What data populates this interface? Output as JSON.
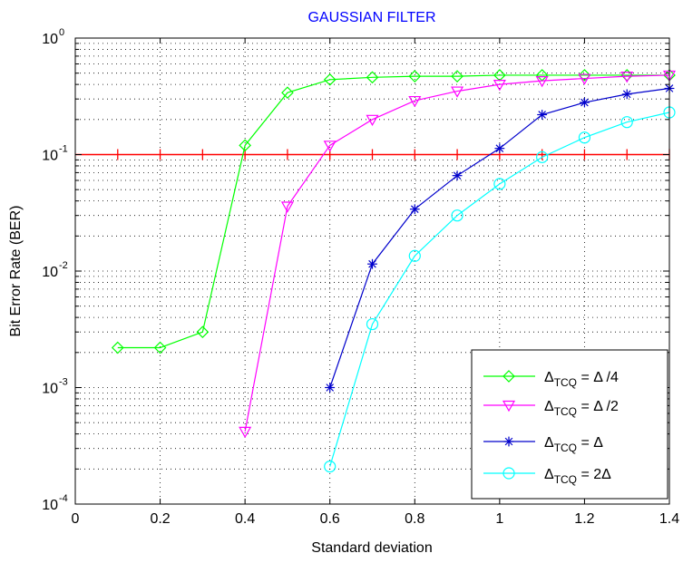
{
  "chart_data": {
    "type": "line",
    "title": "GAUSSIAN FILTER",
    "xlabel": "Standard deviation",
    "ylabel": "Bit Error Rate (BER)",
    "xlim": [
      0,
      1.4
    ],
    "ylim": [
      0.0001,
      1
    ],
    "yscale": "log",
    "grid": true,
    "legend_position": "bottom-right",
    "x_ticks": [
      "0",
      "0.2",
      "0.4",
      "0.6",
      "0.8",
      "1",
      "1.2",
      "1.4"
    ],
    "y_ticks": [
      {
        "base": "10",
        "exp": "-4"
      },
      {
        "base": "10",
        "exp": "-3"
      },
      {
        "base": "10",
        "exp": "-2"
      },
      {
        "base": "10",
        "exp": "-1"
      },
      {
        "base": "10",
        "exp": "0"
      }
    ],
    "threshold": {
      "y": 0.1,
      "color": "#ff0000",
      "x": [
        0.1,
        0.2,
        0.3,
        0.4,
        0.5,
        0.6,
        0.7,
        0.8,
        0.9,
        1.0,
        1.1,
        1.2,
        1.3,
        1.4
      ]
    },
    "series": [
      {
        "name": "Δ_TCQ = Δ/4",
        "legend_main": "Δ",
        "legend_sub": "TCQ",
        "legend_rest": " = Δ /4",
        "color": "#00ff00",
        "marker": "diamond",
        "x": [
          0.1,
          0.2,
          0.3,
          0.4,
          0.5,
          0.6,
          0.7,
          0.8,
          0.9,
          1.0,
          1.1,
          1.2,
          1.3,
          1.4
        ],
        "y": [
          0.0022,
          0.0022,
          0.003,
          0.12,
          0.34,
          0.44,
          0.46,
          0.47,
          0.47,
          0.48,
          0.48,
          0.48,
          0.48,
          0.48
        ]
      },
      {
        "name": "Δ_TCQ = Δ/2",
        "legend_main": "Δ",
        "legend_sub": "TCQ",
        "legend_rest": " = Δ /2",
        "color": "#ff00ff",
        "marker": "triangle-down",
        "x": [
          0.4,
          0.5,
          0.6,
          0.7,
          0.8,
          0.9,
          1.0,
          1.1,
          1.2,
          1.3,
          1.4
        ],
        "y": [
          0.00042,
          0.036,
          0.12,
          0.2,
          0.29,
          0.35,
          0.4,
          0.43,
          0.45,
          0.47,
          0.48
        ]
      },
      {
        "name": "Δ_TCQ = Δ",
        "legend_main": "Δ",
        "legend_sub": "TCQ",
        "legend_rest": " = Δ",
        "color": "#0000cc",
        "marker": "star",
        "x": [
          0.6,
          0.7,
          0.8,
          0.9,
          1.0,
          1.1,
          1.2,
          1.3,
          1.4
        ],
        "y": [
          0.001,
          0.0115,
          0.034,
          0.066,
          0.113,
          0.22,
          0.28,
          0.33,
          0.37
        ]
      },
      {
        "name": "Δ_TCQ = 2Δ",
        "legend_main": "Δ",
        "legend_sub": "TCQ",
        "legend_rest": " = 2Δ",
        "color": "#00ffff",
        "marker": "circle",
        "x": [
          0.6,
          0.7,
          0.8,
          0.9,
          1.0,
          1.1,
          1.2,
          1.3,
          1.4
        ],
        "y": [
          0.00021,
          0.0035,
          0.0135,
          0.03,
          0.056,
          0.095,
          0.14,
          0.19,
          0.23
        ]
      }
    ]
  }
}
